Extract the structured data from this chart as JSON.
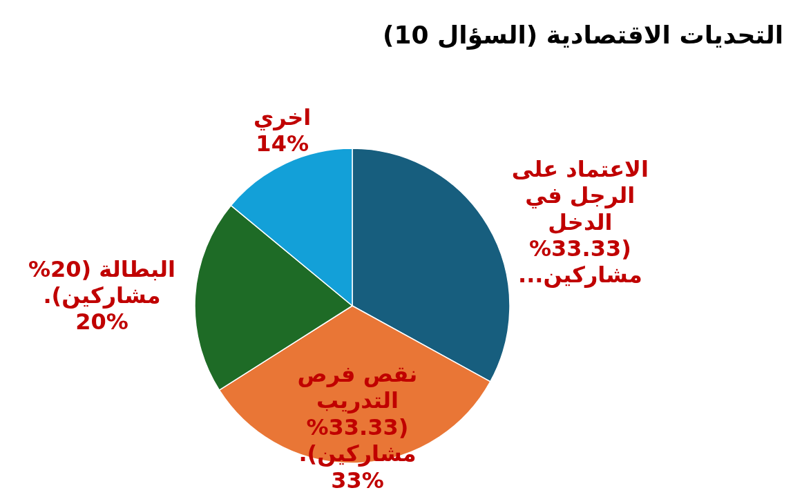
{
  "chart_data": {
    "type": "pie",
    "title": "التحديات الاقتصادية (السؤال 10)",
    "categories": [
      "الاعتماد على الرجل في الدخل (33.33% مشاركين...",
      "نقص فرص التدريب (33.33% مشاركين).",
      "البطالة (20% مشاركين).",
      "اخري"
    ],
    "values": [
      33,
      33,
      20,
      14
    ],
    "colors": [
      "#175e7e",
      "#e97636",
      "#1e6b26",
      "#13a0d8"
    ],
    "value_labels": [
      null,
      "33%",
      "20%",
      "14%"
    ]
  }
}
